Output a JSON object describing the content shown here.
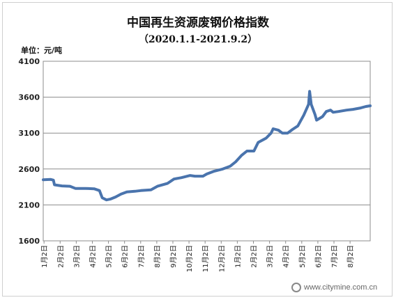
{
  "chart_data": {
    "type": "line",
    "title": "中国再生资源废钢价格指数",
    "subtitle": "（2020.1.1-2021.9.2）",
    "unit_label": "单位：元/吨",
    "xlabel": "",
    "ylabel": "",
    "ylim": [
      1600,
      4100
    ],
    "yticks": [
      "4100",
      "3600",
      "3100",
      "2600",
      "2100",
      "1600"
    ],
    "ytick_values": [
      4100,
      3600,
      3100,
      2600,
      2100,
      1600
    ],
    "categories": [
      "1月2日",
      "2月2日",
      "3月2日",
      "4月2日",
      "5月2日",
      "6月2日",
      "7月2日",
      "8月2日",
      "9月2日",
      "10月2日",
      "11月2日",
      "12月2日",
      "1月2日",
      "2月2日",
      "3月2日",
      "4月2日",
      "5月2日",
      "6月2日",
      "7月2日",
      "8月2日"
    ],
    "x_start": "2020-01-01",
    "x_end": "2021-09-02",
    "line_color": "#4a74ad",
    "series": [
      {
        "points": [
          [
            "2020-01-01",
            2450
          ],
          [
            "2020-01-15",
            2455
          ],
          [
            "2020-01-20",
            2445
          ],
          [
            "2020-01-22",
            2380
          ],
          [
            "2020-02-05",
            2365
          ],
          [
            "2020-02-20",
            2360
          ],
          [
            "2020-03-01",
            2330
          ],
          [
            "2020-03-20",
            2330
          ],
          [
            "2020-04-05",
            2325
          ],
          [
            "2020-04-15",
            2300
          ],
          [
            "2020-04-20",
            2200
          ],
          [
            "2020-04-28",
            2170
          ],
          [
            "2020-05-05",
            2180
          ],
          [
            "2020-05-15",
            2210
          ],
          [
            "2020-05-25",
            2250
          ],
          [
            "2020-06-05",
            2280
          ],
          [
            "2020-06-20",
            2290
          ],
          [
            "2020-07-01",
            2300
          ],
          [
            "2020-07-20",
            2310
          ],
          [
            "2020-08-01",
            2360
          ],
          [
            "2020-08-20",
            2400
          ],
          [
            "2020-09-01",
            2460
          ],
          [
            "2020-09-15",
            2480
          ],
          [
            "2020-10-01",
            2510
          ],
          [
            "2020-10-10",
            2500
          ],
          [
            "2020-10-25",
            2500
          ],
          [
            "2020-11-01",
            2530
          ],
          [
            "2020-11-15",
            2570
          ],
          [
            "2020-12-01",
            2600
          ],
          [
            "2020-12-15",
            2640
          ],
          [
            "2020-12-25",
            2700
          ],
          [
            "2021-01-05",
            2790
          ],
          [
            "2021-01-15",
            2850
          ],
          [
            "2021-01-28",
            2850
          ],
          [
            "2021-02-05",
            2970
          ],
          [
            "2021-02-20",
            3030
          ],
          [
            "2021-03-01",
            3100
          ],
          [
            "2021-03-05",
            3160
          ],
          [
            "2021-03-15",
            3140
          ],
          [
            "2021-03-22",
            3100
          ],
          [
            "2021-04-01",
            3100
          ],
          [
            "2021-04-10",
            3150
          ],
          [
            "2021-04-20",
            3200
          ],
          [
            "2021-05-01",
            3350
          ],
          [
            "2021-05-10",
            3500
          ],
          [
            "2021-05-12",
            3680
          ],
          [
            "2021-05-15",
            3500
          ],
          [
            "2021-05-22",
            3360
          ],
          [
            "2021-05-25",
            3280
          ],
          [
            "2021-06-05",
            3330
          ],
          [
            "2021-06-12",
            3400
          ],
          [
            "2021-06-20",
            3420
          ],
          [
            "2021-06-25",
            3390
          ],
          [
            "2021-07-05",
            3400
          ],
          [
            "2021-07-20",
            3420
          ],
          [
            "2021-08-01",
            3430
          ],
          [
            "2021-08-15",
            3450
          ],
          [
            "2021-08-25",
            3470
          ],
          [
            "2021-09-02",
            3480
          ]
        ]
      }
    ]
  },
  "watermark": {
    "text": "www.citymine.com.cn"
  }
}
